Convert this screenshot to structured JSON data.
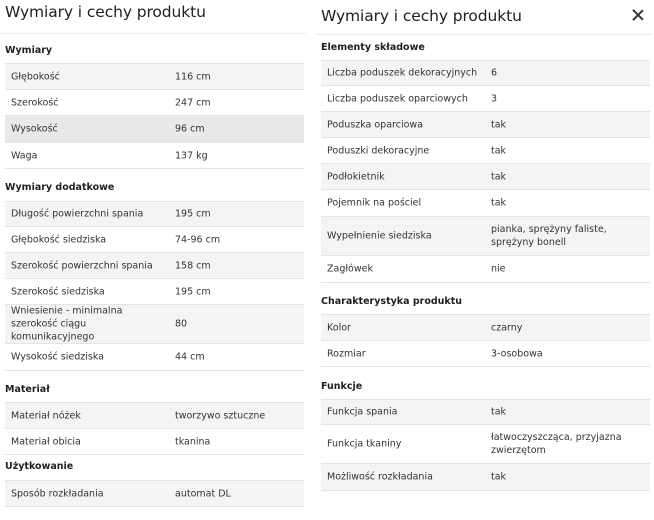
{
  "left": {
    "title": "Wymiary i cechy produktu",
    "sections": [
      {
        "title": "Wymiary",
        "rows": [
          {
            "label": "Głębokość",
            "value": "116 cm"
          },
          {
            "label": "Szerokość",
            "value": "247 cm"
          },
          {
            "label": "Wysokość",
            "value": "96 cm"
          },
          {
            "label": "Waga",
            "value": "137 kg"
          }
        ]
      },
      {
        "title": "Wymiary dodatkowe",
        "rows": [
          {
            "label": "Długość powierzchni spania",
            "value": "195 cm"
          },
          {
            "label": "Głębokość siedziska",
            "value": "74-96 cm"
          },
          {
            "label": "Szerokość powierzchni spania",
            "value": "158 cm"
          },
          {
            "label": "Szerokość siedziska",
            "value": "195 cm"
          },
          {
            "label": "Wniesienie - minimalna szerokość ciągu komunikacyjnego",
            "value": "80"
          },
          {
            "label": "Wysokość siedziska",
            "value": "44 cm"
          }
        ]
      },
      {
        "title": "Materiał",
        "rows": [
          {
            "label": "Materiał nóżek",
            "value": "tworzywo sztuczne"
          },
          {
            "label": "Materiał obicia",
            "value": "tkanina"
          }
        ]
      },
      {
        "title": "Użytkowanie",
        "rows": [
          {
            "label": "Sposób rozkładania",
            "value": "automat DL"
          }
        ]
      }
    ]
  },
  "right": {
    "title": "Wymiary i cechy produktu",
    "close_icon": "close-icon",
    "sections": [
      {
        "title": "Elementy składowe",
        "rows": [
          {
            "label": "Liczba poduszek dekoracyjnych",
            "value": "6"
          },
          {
            "label": "Liczba poduszek oparciowych",
            "value": "3"
          },
          {
            "label": "Poduszka oparciowa",
            "value": "tak"
          },
          {
            "label": "Poduszki dekoracyjne",
            "value": "tak"
          },
          {
            "label": "Podłokietnik",
            "value": "tak"
          },
          {
            "label": "Pojemnik na pościel",
            "value": "tak"
          },
          {
            "label": "Wypełnienie siedziska",
            "value": "pianka, sprężyny faliste, sprężyny bonell"
          },
          {
            "label": "Zagłówek",
            "value": "nie"
          }
        ]
      },
      {
        "title": "Charakterystyka produktu",
        "rows": [
          {
            "label": "Kolor",
            "value": "czarny"
          },
          {
            "label": "Rozmiar",
            "value": "3-osobowa"
          }
        ]
      },
      {
        "title": "Funkcje",
        "rows": [
          {
            "label": "Funkcja spania",
            "value": "tak"
          },
          {
            "label": "Funkcja tkaniny",
            "value": "łatwoczyszcząca, przyjazna zwierzętom"
          },
          {
            "label": "Możliwość rozkładania",
            "value": "tak"
          }
        ]
      }
    ]
  }
}
